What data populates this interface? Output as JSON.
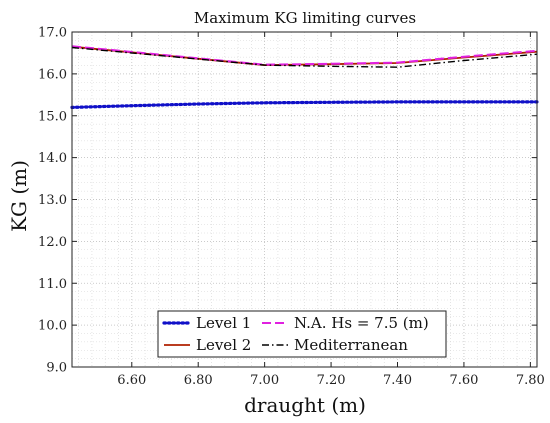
{
  "chart_data": {
    "type": "line",
    "title": "Maximum KG limiting curves",
    "xlabel": "draught (m)",
    "ylabel": "KG (m)",
    "xlim": [
      6.42,
      7.82
    ],
    "ylim": [
      9.0,
      17.0
    ],
    "xticks": [
      "6.60",
      "6.80",
      "7.00",
      "7.20",
      "7.40",
      "7.60",
      "7.80"
    ],
    "yticks": [
      "9.0",
      "10.0",
      "11.0",
      "12.0",
      "13.0",
      "14.0",
      "15.0",
      "16.0",
      "17.0"
    ],
    "grid": true,
    "legend_position": "bottom-center",
    "series": [
      {
        "name": "Level 1",
        "color": "#1010c8",
        "style": "dotted",
        "x": [
          6.42,
          6.6,
          6.8,
          7.0,
          7.2,
          7.4,
          7.6,
          7.82
        ],
        "y": [
          15.2,
          15.24,
          15.28,
          15.31,
          15.32,
          15.33,
          15.33,
          15.33
        ]
      },
      {
        "name": "Level 2",
        "color": "#b02000",
        "style": "solid",
        "x": [
          6.42,
          7.0,
          7.2,
          7.4,
          7.6,
          7.82
        ],
        "y": [
          16.65,
          16.21,
          16.23,
          16.26,
          16.39,
          16.53
        ]
      },
      {
        "name": "N.A. Hs = 7.5 (m)",
        "color": "#e020e0",
        "style": "dashed",
        "x": [
          6.42,
          7.0,
          7.2,
          7.4,
          7.6,
          7.82
        ],
        "y": [
          16.66,
          16.22,
          16.24,
          16.27,
          16.41,
          16.55
        ]
      },
      {
        "name": "Mediterranean",
        "color": "#000000",
        "style": "dashdot",
        "x": [
          6.42,
          7.0,
          7.2,
          7.4,
          7.6,
          7.82
        ],
        "y": [
          16.63,
          16.21,
          16.18,
          16.16,
          16.32,
          16.47
        ]
      }
    ]
  }
}
